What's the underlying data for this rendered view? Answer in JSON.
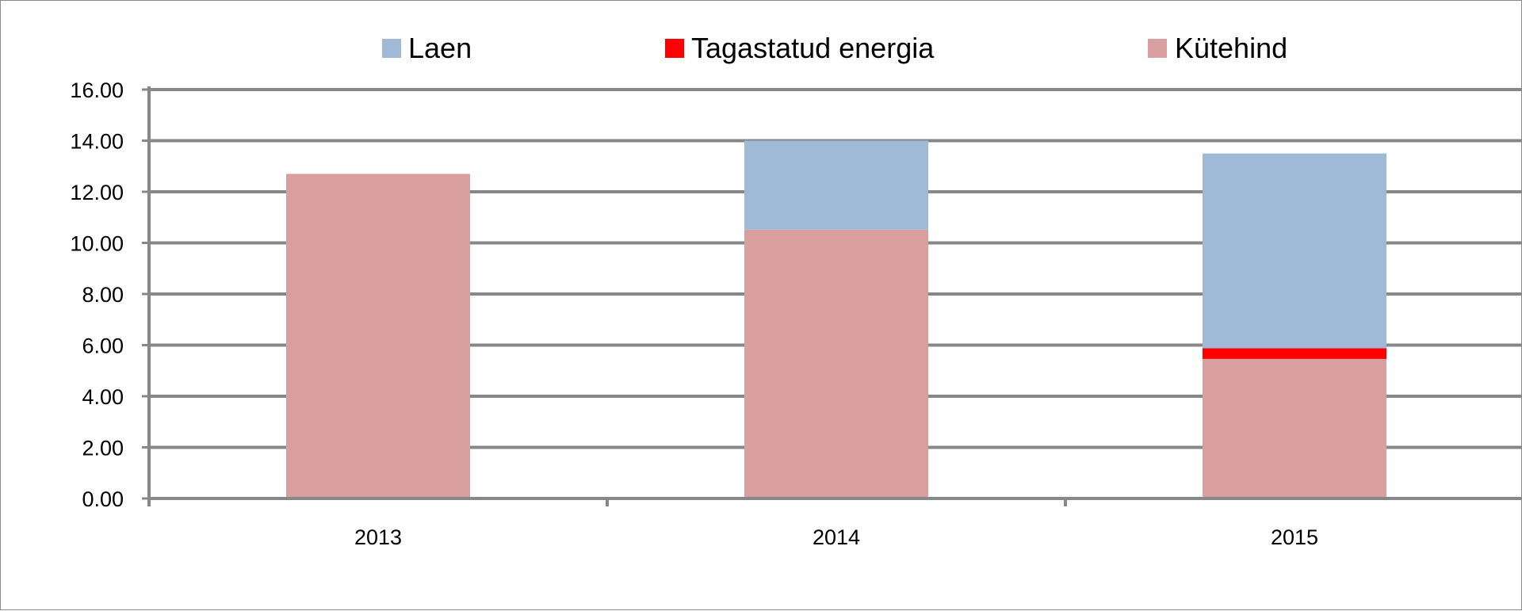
{
  "chart_data": {
    "type": "bar",
    "stacked": true,
    "categories": [
      "2013",
      "2014",
      "2015"
    ],
    "series": [
      {
        "name": "Kütehind",
        "values": [
          12.7,
          10.52,
          5.46
        ],
        "color": "#d99f9e"
      },
      {
        "name": "Tagastatud energia",
        "values": [
          0,
          0,
          0.42
        ],
        "color": "#ff0000"
      },
      {
        "name": "Laen",
        "values": [
          0,
          3.48,
          7.62
        ],
        "color": "#a0b9d7"
      }
    ],
    "legend": {
      "placement": "top",
      "order": [
        "Laen",
        "Tagastatud energia",
        "Kütehind"
      ]
    },
    "yticks": [
      "0.00",
      "2.00",
      "4.00",
      "6.00",
      "8.00",
      "10.00",
      "12.00",
      "14.00",
      "16.00"
    ],
    "ylim": [
      0,
      16
    ],
    "grid": true,
    "title": "",
    "xlabel": "",
    "ylabel": ""
  }
}
